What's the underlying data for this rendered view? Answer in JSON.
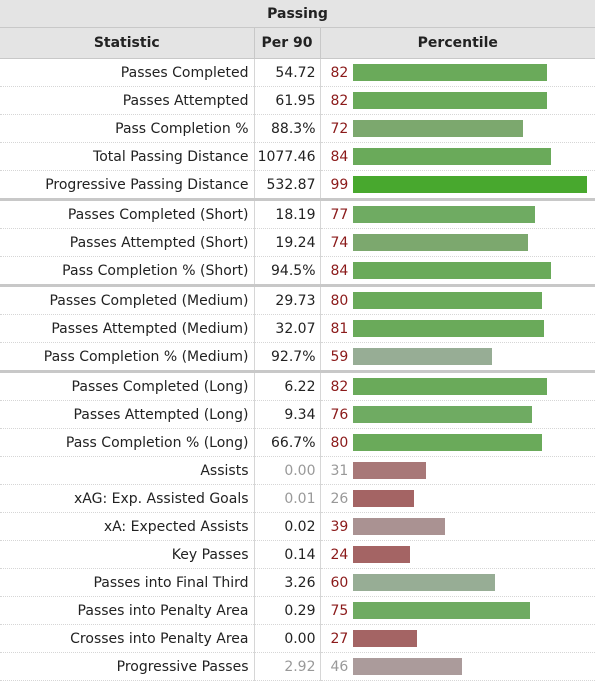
{
  "section_title": "Passing",
  "columns": {
    "statistic": "Statistic",
    "per90": "Per 90",
    "percentile": "Percentile"
  },
  "colors": {
    "high_green": "#6aaa5a",
    "top_green": "#48a82e",
    "mid_green": "#7ca86e",
    "gray_green": "#97ad95",
    "muted_red": "#a87878",
    "red": "#a46464",
    "gray": "#ab9b9b"
  },
  "rows": [
    {
      "label": "Passes Completed",
      "per90": "54.72",
      "percentile": 82,
      "color": "#6aaa5a"
    },
    {
      "label": "Passes Attempted",
      "per90": "61.95",
      "percentile": 82,
      "color": "#6aaa5a"
    },
    {
      "label": "Pass Completion %",
      "per90": "88.3%",
      "percentile": 72,
      "color": "#7ca86e"
    },
    {
      "label": "Total Passing Distance",
      "per90": "1077.46",
      "percentile": 84,
      "color": "#6aaa5a"
    },
    {
      "label": "Progressive Passing Distance",
      "per90": "532.87",
      "percentile": 99,
      "color": "#48a82e"
    },
    {
      "label": "Passes Completed (Short)",
      "per90": "18.19",
      "percentile": 77,
      "color": "#6fab62",
      "group_start": true
    },
    {
      "label": "Passes Attempted (Short)",
      "per90": "19.24",
      "percentile": 74,
      "color": "#7ca86e"
    },
    {
      "label": "Pass Completion % (Short)",
      "per90": "94.5%",
      "percentile": 84,
      "color": "#6aaa5a"
    },
    {
      "label": "Passes Completed (Medium)",
      "per90": "29.73",
      "percentile": 80,
      "color": "#6aaa5a",
      "group_start": true
    },
    {
      "label": "Passes Attempted (Medium)",
      "per90": "32.07",
      "percentile": 81,
      "color": "#6aaa5a"
    },
    {
      "label": "Pass Completion % (Medium)",
      "per90": "92.7%",
      "percentile": 59,
      "color": "#97ad95"
    },
    {
      "label": "Passes Completed (Long)",
      "per90": "6.22",
      "percentile": 82,
      "color": "#6aaa5a",
      "group_start": true
    },
    {
      "label": "Passes Attempted (Long)",
      "per90": "9.34",
      "percentile": 76,
      "color": "#6fab62"
    },
    {
      "label": "Pass Completion % (Long)",
      "per90": "66.7%",
      "percentile": 80,
      "color": "#6aaa5a"
    },
    {
      "label": "Assists",
      "per90": "0.00",
      "percentile": 31,
      "color": "#a87878",
      "muted": true
    },
    {
      "label": "xAG: Exp. Assisted Goals",
      "per90": "0.01",
      "percentile": 26,
      "color": "#a46464",
      "muted": true
    },
    {
      "label": "xA: Expected Assists",
      "per90": "0.02",
      "percentile": 39,
      "color": "#aa9292"
    },
    {
      "label": "Key Passes",
      "per90": "0.14",
      "percentile": 24,
      "color": "#a46464"
    },
    {
      "label": "Passes into Final Third",
      "per90": "3.26",
      "percentile": 60,
      "color": "#97ad95"
    },
    {
      "label": "Passes into Penalty Area",
      "per90": "0.29",
      "percentile": 75,
      "color": "#6fab62"
    },
    {
      "label": "Crosses into Penalty Area",
      "per90": "0.00",
      "percentile": 27,
      "color": "#a46464"
    },
    {
      "label": "Progressive Passes",
      "per90": "2.92",
      "percentile": 46,
      "color": "#ab9b9b",
      "muted": true
    }
  ]
}
